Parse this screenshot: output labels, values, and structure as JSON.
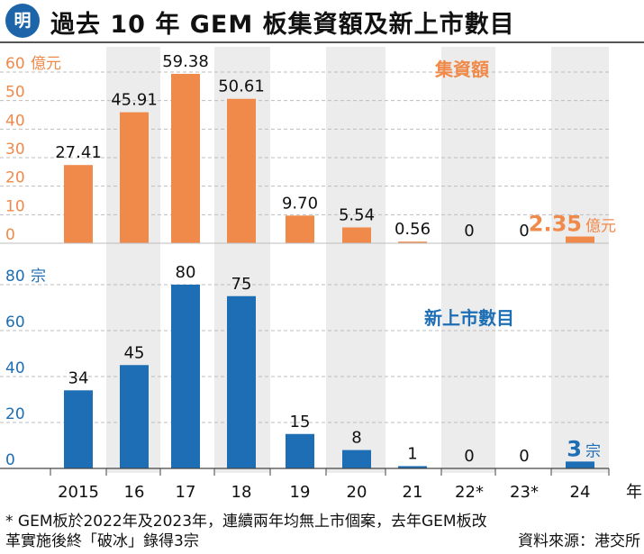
{
  "header": {
    "logo_text": "明",
    "title": "過去 10 年 GEM 板集資額及新上市數目"
  },
  "chart_data": [
    {
      "type": "bar",
      "title": "集資額",
      "unit_label": "億元",
      "categories": [
        "2015",
        "16",
        "17",
        "18",
        "19",
        "20",
        "21",
        "22*",
        "23*",
        "24"
      ],
      "values": [
        27.41,
        45.91,
        59.38,
        50.61,
        9.7,
        5.54,
        0.56,
        0,
        0,
        2.35
      ],
      "value_labels": [
        "27.41",
        "45.91",
        "59.38",
        "50.61",
        "9.70",
        "5.54",
        "0.56",
        "0",
        "0",
        "2.35"
      ],
      "highlight_label": "2.35",
      "highlight_unit": "億元",
      "yticks": [
        "0",
        "10",
        "20",
        "30",
        "40",
        "50",
        "60"
      ],
      "ylim": [
        0,
        60
      ],
      "color": "#ef8a4a"
    },
    {
      "type": "bar",
      "title": "新上市數目",
      "unit_label": "宗",
      "categories": [
        "2015",
        "16",
        "17",
        "18",
        "19",
        "20",
        "21",
        "22*",
        "23*",
        "24"
      ],
      "values": [
        34,
        45,
        80,
        75,
        15,
        8,
        1,
        0,
        0,
        3
      ],
      "value_labels": [
        "34",
        "45",
        "80",
        "75",
        "15",
        "8",
        "1",
        "0",
        "0",
        "3"
      ],
      "highlight_label": "3",
      "highlight_unit": "宗",
      "yticks": [
        "0",
        "20",
        "40",
        "60",
        "80"
      ],
      "ylim": [
        0,
        80
      ],
      "color": "#1d6eb5"
    }
  ],
  "x_axis": {
    "categories": [
      "2015",
      "16",
      "17",
      "18",
      "19",
      "20",
      "21",
      "22*",
      "23*",
      "24"
    ],
    "unit_label": "年"
  },
  "footnote": {
    "line1": "* GEM板於2022年及2023年，連續兩年均無上市個案，去年GEM板改",
    "line2": "革實施後終「破冰」錄得3宗",
    "source": "資料來源：港交所"
  }
}
